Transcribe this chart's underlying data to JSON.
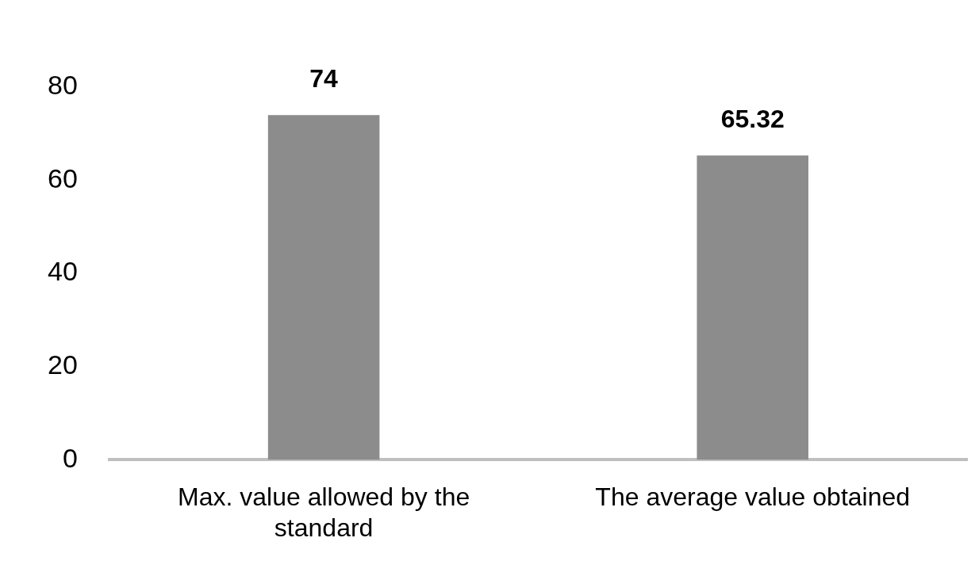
{
  "chart_data": {
    "type": "bar",
    "categories": [
      "Max. value allowed by the standard",
      "The average value obtained"
    ],
    "values": [
      74,
      65.32
    ],
    "color": "#8c8c8c",
    "ylim": [
      0,
      80
    ],
    "yticks": [
      0,
      20,
      40,
      60,
      80
    ],
    "grid": false,
    "legend": false,
    "data_labels": true
  }
}
